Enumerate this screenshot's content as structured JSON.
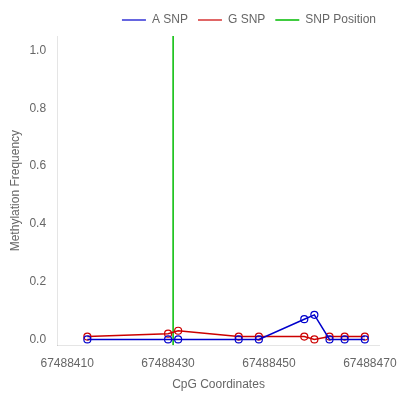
{
  "chart_data": {
    "type": "line",
    "xlabel": "CpG Coordinates",
    "ylabel": "Methylation Frequency",
    "x": [
      67488414,
      67488430,
      67488432,
      67488444,
      67488448,
      67488457,
      67488459,
      67488462,
      67488465,
      67488469
    ],
    "series": [
      {
        "name": "A SNP",
        "color": "#0000cc",
        "marker": "circle",
        "values": [
          0.0,
          0.0,
          0.0,
          0.0,
          0.0,
          0.07,
          0.085,
          0.0,
          0.0,
          0.0
        ]
      },
      {
        "name": "G SNP",
        "color": "#cc0000",
        "marker": "circle",
        "values": [
          0.01,
          0.02,
          0.03,
          0.01,
          0.01,
          0.01,
          0.0,
          0.01,
          0.01,
          0.01
        ]
      },
      {
        "name": "SNP Position",
        "color": "#00bb00",
        "type": "vline",
        "value": 67488431
      }
    ],
    "xlim": [
      67488408,
      67488472
    ],
    "xticks": [
      67488410,
      67488430,
      67488450,
      67488470
    ],
    "ylim": [
      -0.02,
      1.05
    ],
    "yticks": [
      {
        "value": 0.0,
        "label": "0.0"
      },
      0.2,
      0.4,
      0.6,
      0.8,
      {
        "value": 1.0,
        "label": "1.0"
      }
    ],
    "grid": false,
    "legend": "upper right"
  }
}
